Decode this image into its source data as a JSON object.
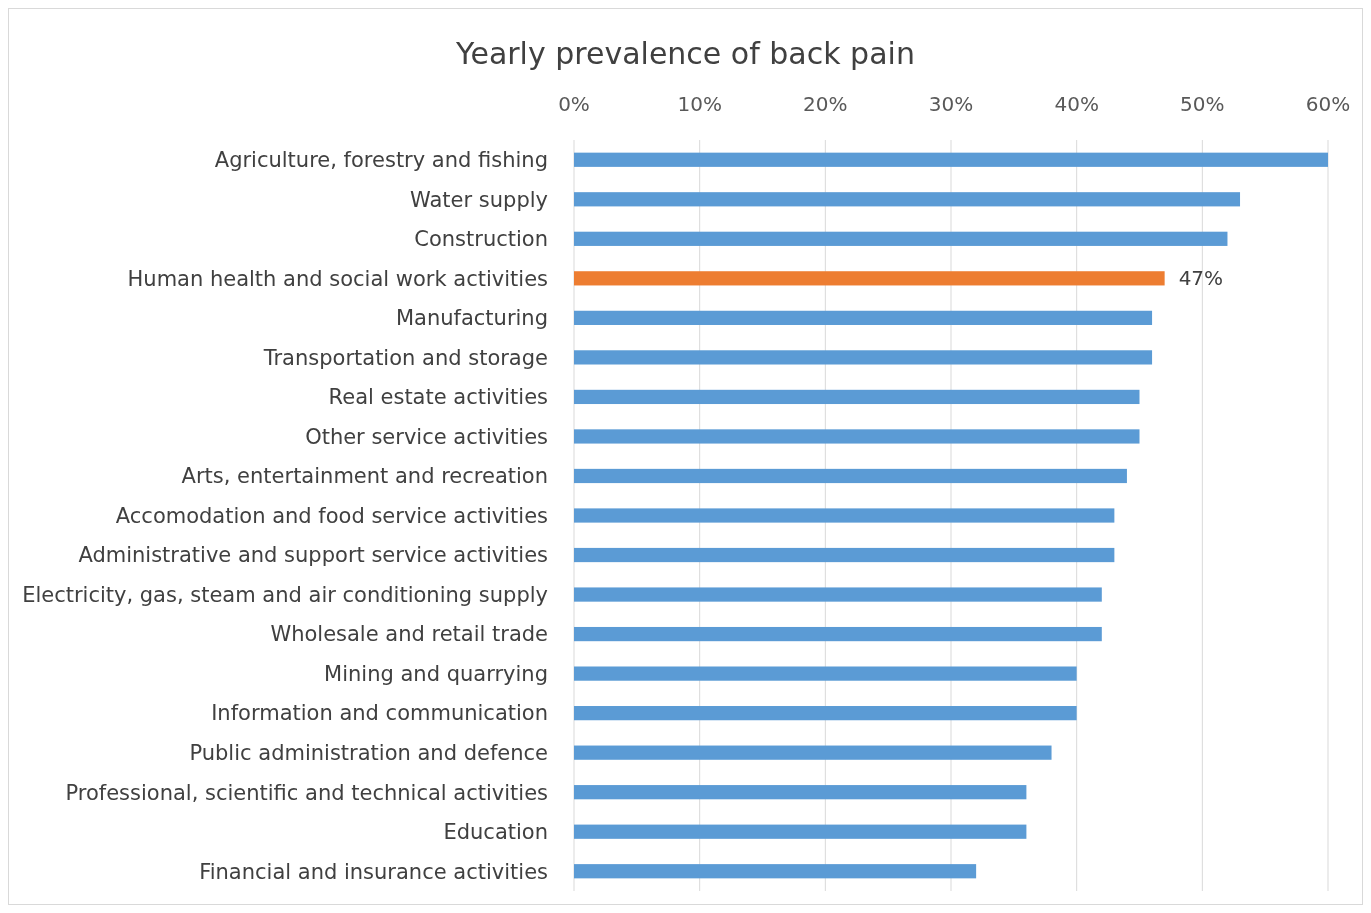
{
  "chart_data": {
    "type": "bar",
    "orientation": "horizontal",
    "title": "Yearly prevalence of back pain",
    "categories": [
      "Agriculture, forestry and fishing",
      "Water supply",
      "Construction",
      "Human health and social work activities",
      "Manufacturing",
      "Transportation and storage",
      "Real estate activities",
      "Other service activities",
      "Arts, entertainment and recreation",
      "Accomodation and food service activities",
      "Administrative and support service activities",
      "Electricity, gas, steam and air conditioning supply",
      "Wholesale and retail trade",
      "Mining and quarrying",
      "Information and communication",
      "Public administration and defence",
      "Professional, scientific and technical activities",
      "Education",
      "Financial and insurance activities"
    ],
    "values": [
      60,
      53,
      52,
      47,
      46,
      46,
      45,
      45,
      44,
      43,
      43,
      42,
      42,
      40,
      40,
      38,
      36,
      36,
      32
    ],
    "colors": [
      "#5b9bd5",
      "#5b9bd5",
      "#5b9bd5",
      "#ed7d31",
      "#5b9bd5",
      "#5b9bd5",
      "#5b9bd5",
      "#5b9bd5",
      "#5b9bd5",
      "#5b9bd5",
      "#5b9bd5",
      "#5b9bd5",
      "#5b9bd5",
      "#5b9bd5",
      "#5b9bd5",
      "#5b9bd5",
      "#5b9bd5",
      "#5b9bd5",
      "#5b9bd5"
    ],
    "value_labels": [
      null,
      null,
      null,
      "47%",
      null,
      null,
      null,
      null,
      null,
      null,
      null,
      null,
      null,
      null,
      null,
      null,
      null,
      null,
      null
    ],
    "xlim": [
      0,
      60
    ],
    "xticks": [
      {
        "value": 0,
        "label": "0%"
      },
      {
        "value": 10,
        "label": "10%"
      },
      {
        "value": 20,
        "label": "20%"
      },
      {
        "value": 30,
        "label": "30%"
      },
      {
        "value": 40,
        "label": "40%"
      },
      {
        "value": 50,
        "label": "50%"
      },
      {
        "value": 60,
        "label": "60%"
      }
    ],
    "grid": "x"
  }
}
